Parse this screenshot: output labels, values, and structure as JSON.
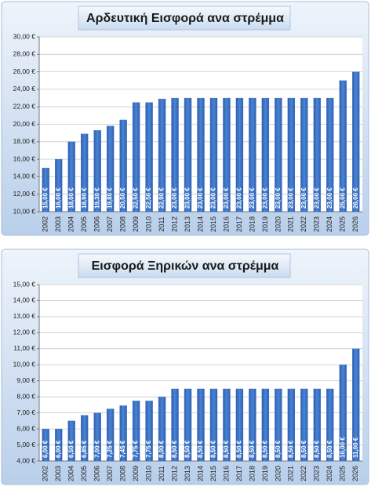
{
  "chart_data": [
    {
      "type": "bar",
      "title": "Αρδευτική Εισφορά ανα στρέμμα",
      "categories": [
        "2002",
        "2003",
        "2004",
        "2005",
        "2006",
        "2007",
        "2008",
        "2009",
        "2010",
        "2011",
        "2012",
        "2013",
        "2014",
        "2015",
        "2016",
        "2017",
        "2018",
        "2019",
        "2020",
        "2021",
        "2022",
        "2023",
        "2024",
        "2025",
        "2026"
      ],
      "values": [
        15,
        16,
        18,
        18.9,
        19.3,
        19.8,
        20.5,
        22.5,
        22.5,
        22.9,
        23,
        23,
        23,
        23,
        23,
        23,
        23,
        23,
        23,
        23,
        23,
        23,
        23,
        25,
        26
      ],
      "value_labels": [
        "15,00 €",
        "16,00 €",
        "18,00 €",
        "18,90 €",
        "19,30 €",
        "19,80 €",
        "20,50 €",
        "22,50 €",
        "22,50 €",
        "22,90 €",
        "23,00 €",
        "23,00 €",
        "23,00 €",
        "23,00 €",
        "23,00 €",
        "23,00 €",
        "23,00 €",
        "23,00 €",
        "23,00 €",
        "23,00 €",
        "23,00 €",
        "23,00 €",
        "23,00 €",
        "25,00 €",
        "26,00 €"
      ],
      "color": "#3c72c8",
      "ylim": [
        10,
        30
      ],
      "yticks": [
        {
          "value": 10,
          "label": "10,00 €"
        },
        {
          "value": 12,
          "label": "12,00 €"
        },
        {
          "value": 14,
          "label": "14,00 €"
        },
        {
          "value": 16,
          "label": "16,00 €"
        },
        {
          "value": 18,
          "label": "18,00 €"
        },
        {
          "value": 20,
          "label": "20,00 €"
        },
        {
          "value": 22,
          "label": "22,00 €"
        },
        {
          "value": 24,
          "label": "24,00 €"
        },
        {
          "value": 26,
          "label": "26,00 €"
        },
        {
          "value": 28,
          "label": "28,00 €"
        },
        {
          "value": 30,
          "label": "30,00 €"
        }
      ],
      "grid": true
    },
    {
      "type": "bar",
      "title": "Εισφορά Ξηρικών ανα στρέμμα",
      "categories": [
        "2002",
        "2003",
        "2004",
        "2005",
        "2006",
        "2007",
        "2008",
        "2009",
        "2010",
        "2011",
        "2012",
        "2013",
        "2014",
        "2015",
        "2016",
        "2017",
        "2018",
        "2019",
        "2020",
        "2021",
        "2022",
        "2023",
        "2024",
        "2025",
        "2026"
      ],
      "values": [
        6,
        6,
        6.5,
        6.85,
        7,
        7.25,
        7.45,
        7.75,
        7.75,
        8,
        8.5,
        8.5,
        8.5,
        8.5,
        8.5,
        8.5,
        8.5,
        8.5,
        8.5,
        8.5,
        8.5,
        8.5,
        8.5,
        10,
        11
      ],
      "value_labels": [
        "6,00 €",
        "6,00 €",
        "6,50 €",
        "6,85 €",
        "7,00 €",
        "7,25 €",
        "7,45 €",
        "7,75 €",
        "7,75 €",
        "8,00 €",
        "8,50 €",
        "8,50 €",
        "8,50 €",
        "8,50 €",
        "8,50 €",
        "8,50 €",
        "8,50 €",
        "8,50 €",
        "8,50 €",
        "8,50 €",
        "8,50 €",
        "8,50 €",
        "8,50 €",
        "10,00 €",
        "11,00 €"
      ],
      "color": "#3c72c8",
      "ylim": [
        4,
        15
      ],
      "yticks": [
        {
          "value": 4,
          "label": "4,00 €"
        },
        {
          "value": 5,
          "label": "5,00 €"
        },
        {
          "value": 6,
          "label": "6,00 €"
        },
        {
          "value": 7,
          "label": "7,00 €"
        },
        {
          "value": 8,
          "label": "8,00 €"
        },
        {
          "value": 9,
          "label": "9,00 €"
        },
        {
          "value": 10,
          "label": "10,00 €"
        },
        {
          "value": 11,
          "label": "11,00 €"
        },
        {
          "value": 12,
          "label": "12,00 €"
        },
        {
          "value": 13,
          "label": "13,00 €"
        },
        {
          "value": 14,
          "label": "14,00 €"
        },
        {
          "value": 15,
          "label": "15,00 €"
        }
      ],
      "grid": true
    }
  ]
}
